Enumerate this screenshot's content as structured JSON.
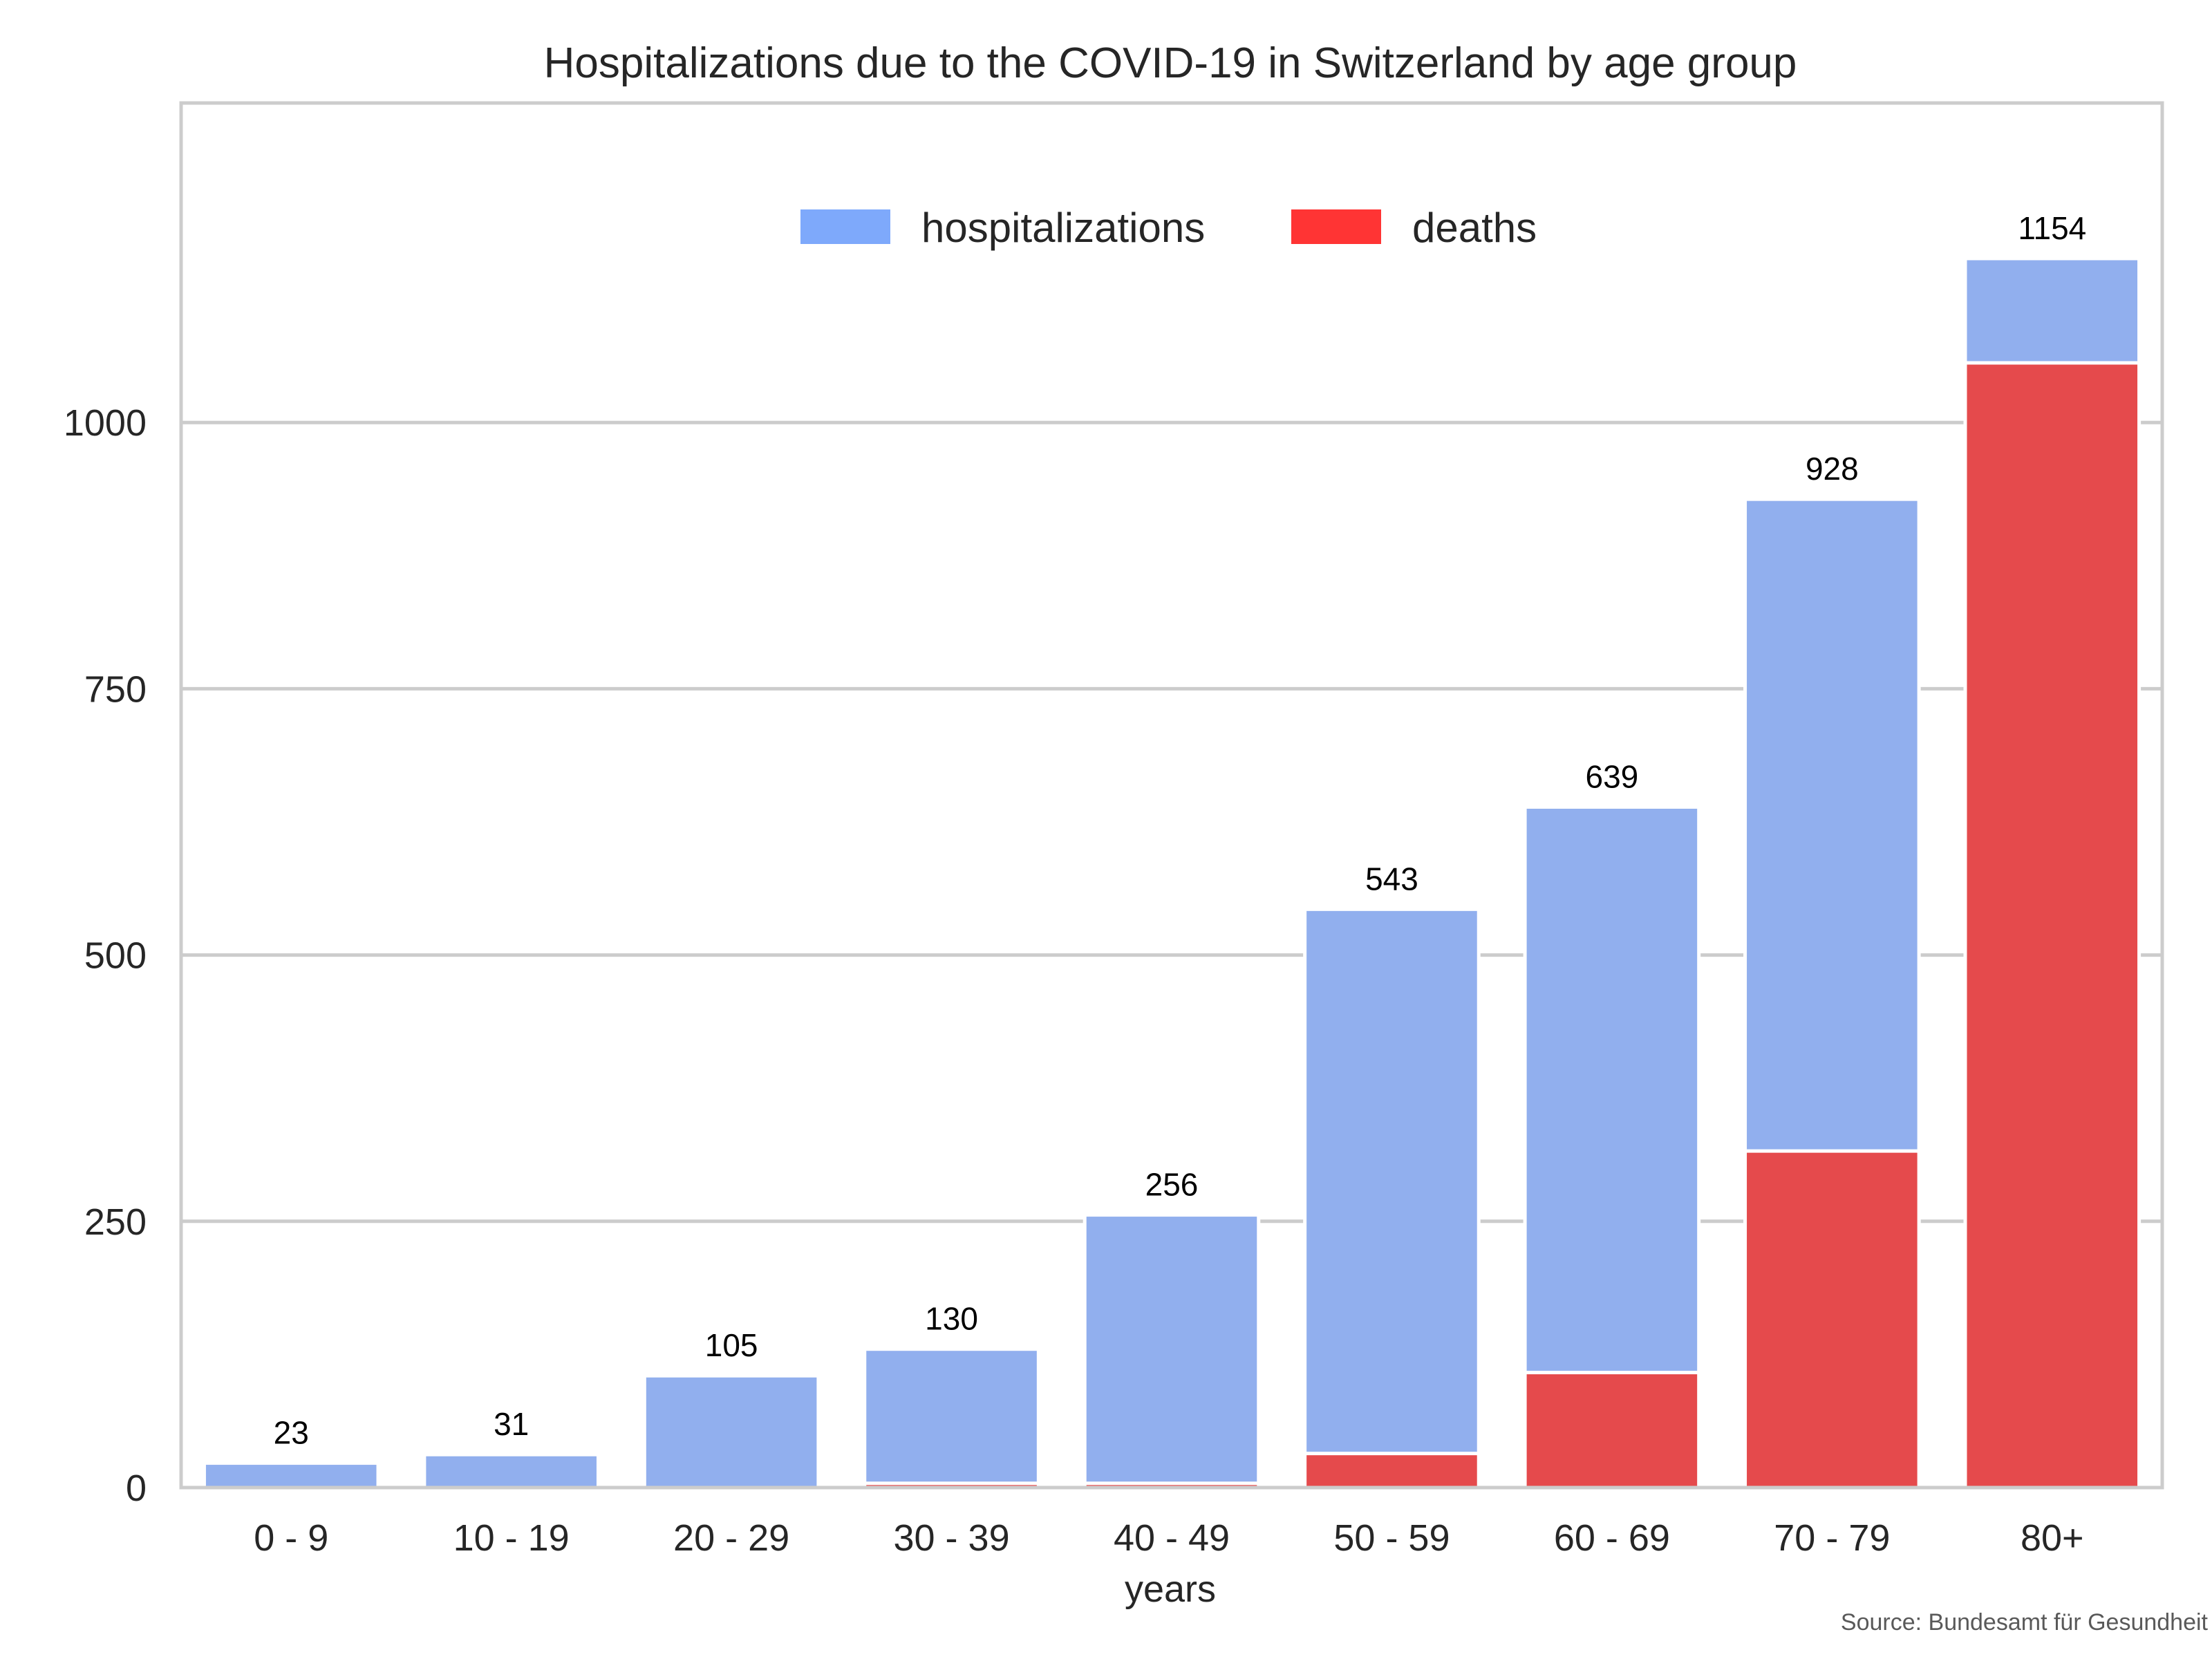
{
  "chart_data": {
    "type": "bar",
    "stacked": "overlay",
    "title": "Hospitalizations due to the COVID-19 in Switzerland by age group",
    "xlabel": "years",
    "ylabel": "",
    "categories": [
      "0 - 9",
      "10 - 19",
      "20 - 29",
      "30 - 39",
      "40 - 49",
      "50 - 59",
      "60 - 69",
      "70 - 79",
      "80+"
    ],
    "series": [
      {
        "name": "hospitalizations",
        "values": [
          23,
          31,
          105,
          130,
          256,
          543,
          639,
          928,
          1154
        ]
      },
      {
        "name": "deaths",
        "values": [
          0,
          0,
          0,
          4,
          4,
          32,
          108,
          316,
          1056
        ]
      }
    ],
    "data_labels": [
      "23",
      "31",
      "105",
      "130",
      "256",
      "543",
      "639",
      "928",
      "1154"
    ],
    "yticks": [
      0,
      250,
      500,
      750,
      1000
    ],
    "ytick_labels": [
      "0",
      "250",
      "500",
      "750",
      "1000"
    ],
    "ylim": [
      0,
      1300
    ],
    "grid": "horizontal",
    "legend": {
      "position": "upper-center",
      "orientation": "horizontal",
      "entries": [
        "hospitalizations",
        "deaths"
      ]
    },
    "annotation": "Source: Bundesamt für Gesundheit",
    "colors": {
      "hospitalizations": "#91AFEE",
      "deaths": "#E54A4C",
      "legend_hospitalizations": "#7EA9FB",
      "legend_deaths": "#FF3434",
      "grid": "#CCCCCC",
      "frame": "#CCCCCC"
    }
  }
}
